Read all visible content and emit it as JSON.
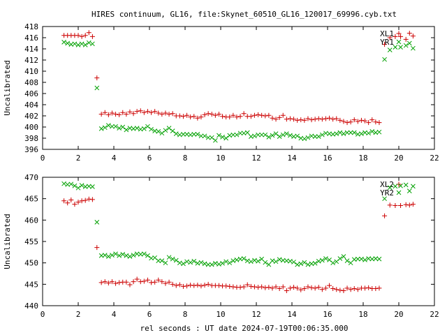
{
  "colors": {
    "red": "#cc0000",
    "green": "#00a000",
    "frame": "#000000",
    "background": "#ffffff"
  },
  "chart_data": [
    {
      "type": "scatter",
      "title": "HIRES continuum, GL16, file:Skynet_60510_GL16_120017_69996.cyb.txt",
      "ylabel": "Uncalibrated",
      "xlabel": "",
      "xlim": [
        0,
        22
      ],
      "ylim": [
        396,
        418
      ],
      "xticks": [
        0,
        2,
        4,
        6,
        8,
        10,
        12,
        14,
        16,
        18,
        20,
        22
      ],
      "yticks": [
        396,
        398,
        400,
        402,
        404,
        406,
        408,
        410,
        412,
        414,
        416,
        418
      ],
      "legend_position": "top-right",
      "grid": false,
      "series": [
        {
          "name": "XL1",
          "marker": "+",
          "color": "#cc0000",
          "x": [
            1.2,
            1.4,
            1.6,
            1.8,
            2.0,
            2.2,
            2.4,
            2.6,
            2.8,
            3.05,
            3.3,
            3.5,
            3.7,
            3.9,
            4.1,
            4.3,
            4.5,
            4.7,
            4.9,
            5.1,
            5.3,
            5.5,
            5.7,
            5.9,
            6.1,
            6.3,
            6.5,
            6.7,
            6.9,
            7.1,
            7.3,
            7.5,
            7.7,
            7.9,
            8.1,
            8.3,
            8.5,
            8.7,
            8.9,
            9.1,
            9.3,
            9.5,
            9.7,
            9.9,
            10.1,
            10.3,
            10.5,
            10.7,
            10.9,
            11.1,
            11.3,
            11.5,
            11.7,
            11.9,
            12.1,
            12.3,
            12.5,
            12.7,
            12.9,
            13.1,
            13.3,
            13.5,
            13.7,
            13.9,
            14.1,
            14.3,
            14.5,
            14.7,
            14.9,
            15.1,
            15.3,
            15.5,
            15.7,
            15.9,
            16.1,
            16.3,
            16.5,
            16.7,
            16.9,
            17.1,
            17.3,
            17.5,
            17.7,
            17.9,
            18.1,
            18.3,
            18.5,
            18.7,
            18.9,
            19.2,
            19.5,
            19.8,
            20.1,
            20.4,
            20.6,
            20.8
          ],
          "y": [
            416.4,
            416.4,
            416.4,
            416.4,
            416.4,
            416.2,
            416.4,
            416.9,
            416.2,
            408.8,
            402.3,
            402.6,
            402.2,
            402.5,
            402.3,
            402.2,
            402.6,
            402.3,
            402.7,
            402.4,
            402.8,
            402.9,
            402.6,
            402.8,
            402.6,
            402.8,
            402.5,
            402.3,
            402.5,
            402.3,
            402.4,
            402.0,
            402.0,
            401.9,
            402.1,
            401.8,
            401.9,
            401.6,
            401.8,
            402.2,
            402.4,
            402.3,
            402.1,
            402.3,
            401.9,
            401.8,
            401.8,
            402.1,
            401.8,
            401.9,
            402.4,
            401.9,
            401.9,
            402.1,
            402.2,
            402.1,
            402.0,
            402.1,
            401.6,
            401.4,
            401.7,
            402.1,
            401.4,
            401.5,
            401.4,
            401.2,
            401.3,
            401.2,
            401.5,
            401.3,
            401.4,
            401.5,
            401.4,
            401.5,
            401.6,
            401.4,
            401.5,
            401.2,
            401.0,
            400.8,
            400.9,
            401.3,
            401.0,
            401.2,
            401.1,
            400.8,
            401.3,
            400.9,
            400.8,
            414.8,
            416.0,
            416.2,
            416.2,
            415.7,
            416.8,
            416.3
          ]
        },
        {
          "name": "YR1",
          "marker": "x",
          "color": "#00a000",
          "x": [
            1.2,
            1.4,
            1.6,
            1.8,
            2.0,
            2.2,
            2.4,
            2.6,
            2.8,
            3.05,
            3.3,
            3.5,
            3.7,
            3.9,
            4.1,
            4.3,
            4.5,
            4.7,
            4.9,
            5.1,
            5.3,
            5.5,
            5.7,
            5.9,
            6.1,
            6.3,
            6.5,
            6.7,
            6.9,
            7.1,
            7.3,
            7.5,
            7.7,
            7.9,
            8.1,
            8.3,
            8.5,
            8.7,
            8.9,
            9.1,
            9.3,
            9.5,
            9.7,
            9.9,
            10.1,
            10.3,
            10.5,
            10.7,
            10.9,
            11.1,
            11.3,
            11.5,
            11.7,
            11.9,
            12.1,
            12.3,
            12.5,
            12.7,
            12.9,
            13.1,
            13.3,
            13.5,
            13.7,
            13.9,
            14.1,
            14.3,
            14.5,
            14.7,
            14.9,
            15.1,
            15.3,
            15.5,
            15.7,
            15.9,
            16.1,
            16.3,
            16.5,
            16.7,
            16.9,
            17.1,
            17.3,
            17.5,
            17.7,
            17.9,
            18.1,
            18.3,
            18.5,
            18.7,
            18.9,
            19.2,
            19.5,
            19.8,
            20.1,
            20.4,
            20.6,
            20.8
          ],
          "y": [
            415.2,
            415.0,
            414.8,
            414.9,
            414.7,
            414.9,
            414.7,
            415.1,
            414.9,
            407.0,
            399.7,
            399.9,
            400.3,
            400.1,
            400.1,
            399.8,
            400.0,
            399.5,
            399.8,
            399.7,
            399.8,
            399.6,
            399.7,
            400.1,
            399.6,
            399.3,
            399.2,
            398.9,
            399.4,
            399.8,
            399.3,
            398.8,
            398.6,
            398.7,
            398.7,
            398.6,
            398.7,
            398.7,
            398.4,
            398.4,
            398.1,
            398.1,
            397.6,
            398.5,
            398.2,
            398.0,
            398.5,
            398.6,
            398.6,
            398.9,
            398.9,
            399.0,
            398.3,
            398.4,
            398.6,
            398.6,
            398.6,
            398.2,
            398.5,
            398.8,
            398.3,
            398.6,
            398.8,
            398.5,
            398.3,
            398.4,
            398.0,
            397.9,
            398.1,
            398.4,
            398.3,
            398.3,
            398.6,
            398.9,
            398.8,
            398.7,
            398.8,
            399.0,
            398.8,
            399.0,
            399.0,
            399.0,
            398.7,
            398.8,
            399.0,
            398.9,
            399.2,
            399.0,
            399.1,
            412.1,
            413.8,
            414.3,
            414.3,
            414.6,
            415.0,
            414.1
          ]
        }
      ]
    },
    {
      "type": "scatter",
      "title": "",
      "ylabel": "Uncalibrated",
      "xlabel": "rel seconds : UT date 2024-07-19T00:06:35.000",
      "xlim": [
        0,
        22
      ],
      "ylim": [
        440,
        470
      ],
      "xticks": [
        0,
        2,
        4,
        6,
        8,
        10,
        12,
        14,
        16,
        18,
        20,
        22
      ],
      "yticks": [
        440,
        445,
        450,
        455,
        460,
        465,
        470
      ],
      "legend_position": "top-right",
      "grid": false,
      "series": [
        {
          "name": "XL2",
          "marker": "+",
          "color": "#cc0000",
          "x": [
            1.2,
            1.4,
            1.6,
            1.8,
            2.0,
            2.2,
            2.4,
            2.6,
            2.8,
            3.05,
            3.3,
            3.5,
            3.7,
            3.9,
            4.1,
            4.3,
            4.5,
            4.7,
            4.9,
            5.1,
            5.3,
            5.5,
            5.7,
            5.9,
            6.1,
            6.3,
            6.5,
            6.7,
            6.9,
            7.1,
            7.3,
            7.5,
            7.7,
            7.9,
            8.1,
            8.3,
            8.5,
            8.7,
            8.9,
            9.1,
            9.3,
            9.5,
            9.7,
            9.9,
            10.1,
            10.3,
            10.5,
            10.7,
            10.9,
            11.1,
            11.3,
            11.5,
            11.7,
            11.9,
            12.1,
            12.3,
            12.5,
            12.7,
            12.9,
            13.1,
            13.3,
            13.5,
            13.7,
            13.9,
            14.1,
            14.3,
            14.5,
            14.7,
            14.9,
            15.1,
            15.3,
            15.5,
            15.7,
            15.9,
            16.1,
            16.3,
            16.5,
            16.7,
            16.9,
            17.1,
            17.3,
            17.5,
            17.7,
            17.9,
            18.1,
            18.3,
            18.5,
            18.7,
            18.9,
            19.2,
            19.5,
            19.8,
            20.1,
            20.4,
            20.6,
            20.8
          ],
          "y": [
            464.5,
            464.0,
            464.7,
            463.7,
            464.2,
            464.5,
            464.6,
            464.9,
            464.8,
            453.6,
            445.4,
            445.6,
            445.3,
            445.6,
            445.2,
            445.4,
            445.5,
            445.5,
            444.9,
            445.6,
            446.2,
            445.6,
            445.7,
            446.0,
            445.4,
            445.5,
            446.0,
            445.6,
            445.2,
            445.5,
            445.0,
            444.7,
            444.9,
            444.5,
            444.6,
            444.8,
            444.7,
            444.8,
            444.6,
            444.8,
            445.0,
            444.7,
            444.7,
            444.7,
            444.6,
            444.6,
            444.5,
            444.4,
            444.3,
            444.3,
            444.4,
            444.9,
            444.5,
            444.4,
            444.3,
            444.4,
            444.2,
            444.3,
            444.1,
            444.4,
            444.0,
            444.4,
            443.5,
            444.1,
            444.3,
            444.1,
            443.7,
            444.0,
            444.4,
            444.2,
            444.1,
            444.3,
            443.8,
            444.1,
            444.7,
            444.0,
            443.8,
            443.6,
            443.5,
            444.1,
            443.8,
            444.0,
            443.8,
            444.1,
            444.1,
            444.2,
            444.0,
            444.0,
            444.1,
            461.0,
            463.5,
            463.4,
            463.4,
            463.6,
            463.5,
            463.7
          ]
        },
        {
          "name": "YR2",
          "marker": "x",
          "color": "#00a000",
          "x": [
            1.2,
            1.4,
            1.6,
            1.8,
            2.0,
            2.2,
            2.4,
            2.6,
            2.8,
            3.05,
            3.3,
            3.5,
            3.7,
            3.9,
            4.1,
            4.3,
            4.5,
            4.7,
            4.9,
            5.1,
            5.3,
            5.5,
            5.7,
            5.9,
            6.1,
            6.3,
            6.5,
            6.7,
            6.9,
            7.1,
            7.3,
            7.5,
            7.7,
            7.9,
            8.1,
            8.3,
            8.5,
            8.7,
            8.9,
            9.1,
            9.3,
            9.5,
            9.7,
            9.9,
            10.1,
            10.3,
            10.5,
            10.7,
            10.9,
            11.1,
            11.3,
            11.5,
            11.7,
            11.9,
            12.1,
            12.3,
            12.5,
            12.7,
            12.9,
            13.1,
            13.3,
            13.5,
            13.7,
            13.9,
            14.1,
            14.3,
            14.5,
            14.7,
            14.9,
            15.1,
            15.3,
            15.5,
            15.7,
            15.9,
            16.1,
            16.3,
            16.5,
            16.7,
            16.9,
            17.1,
            17.3,
            17.5,
            17.7,
            17.9,
            18.1,
            18.3,
            18.5,
            18.7,
            18.9,
            19.2,
            19.5,
            19.8,
            20.1,
            20.4,
            20.6,
            20.8
          ],
          "y": [
            468.5,
            468.3,
            468.4,
            468.0,
            467.5,
            468.1,
            467.8,
            467.9,
            467.8,
            459.5,
            451.7,
            451.8,
            451.5,
            451.8,
            452.1,
            451.7,
            452.0,
            451.7,
            451.5,
            451.8,
            452.1,
            452.0,
            452.1,
            451.7,
            451.1,
            451.2,
            450.5,
            450.5,
            450.0,
            451.3,
            450.9,
            450.6,
            450.0,
            449.8,
            450.3,
            450.1,
            450.4,
            449.9,
            450.1,
            449.8,
            449.6,
            449.6,
            449.9,
            449.7,
            449.9,
            450.3,
            450.0,
            450.5,
            450.7,
            450.9,
            451.0,
            450.5,
            450.3,
            450.6,
            450.4,
            450.9,
            450.1,
            449.6,
            450.5,
            450.3,
            450.8,
            450.6,
            450.5,
            450.4,
            450.2,
            449.6,
            449.8,
            450.1,
            449.6,
            449.8,
            449.9,
            450.4,
            450.6,
            451.0,
            450.7,
            450.0,
            450.3,
            451.0,
            451.5,
            450.5,
            450.0,
            450.8,
            450.9,
            450.9,
            450.7,
            451.0,
            450.9,
            451.0,
            450.9,
            465.0,
            467.6,
            467.9,
            468.0,
            468.2,
            466.8,
            467.9
          ]
        }
      ]
    }
  ]
}
